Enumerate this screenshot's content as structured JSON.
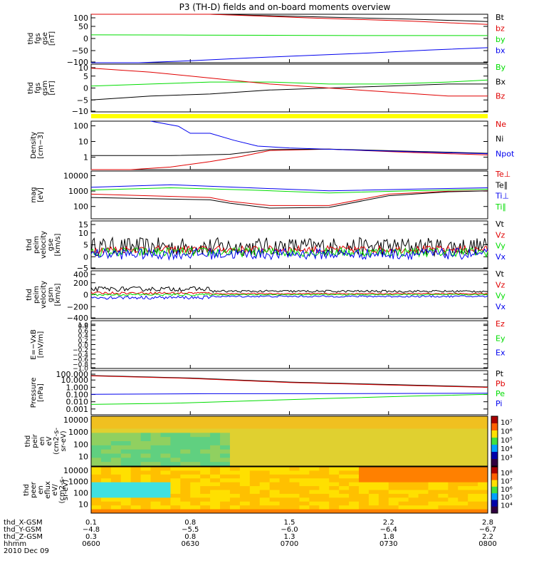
{
  "title": "P3 (TH-D) fields and on-board moments overview",
  "colors": {
    "black": "#000000",
    "red": "#e00000",
    "green": "#00dd00",
    "blue": "#0000ee",
    "yellow": "#ffff00"
  },
  "chart_data": [
    {
      "type": "line",
      "panel": "fgs_gse",
      "ylabel_lines": [
        "thd",
        "fgs",
        "gse",
        "[nT]"
      ],
      "ylim": [
        -100,
        100
      ],
      "yticks": [
        "100",
        "50",
        "0",
        "−50",
        "−100"
      ],
      "series": [
        {
          "name": "Bt",
          "color": "black",
          "x": [
            0,
            0.12,
            0.3,
            0.55,
            0.8,
            1
          ],
          "y": [
            100,
            100,
            100,
            90,
            80,
            70
          ]
        },
        {
          "name": "bz",
          "color": "red",
          "x": [
            0,
            0.12,
            0.3,
            0.55,
            0.8,
            1
          ],
          "y": [
            100,
            100,
            100,
            85,
            72,
            58
          ]
        },
        {
          "name": "by",
          "color": "green",
          "x": [
            0,
            0.25,
            0.5,
            0.75,
            1
          ],
          "y": [
            15,
            14,
            13,
            12,
            12
          ]
        },
        {
          "name": "bx",
          "color": "blue",
          "x": [
            0,
            0.12,
            0.25,
            0.4,
            0.55,
            0.7,
            0.85,
            1
          ],
          "y": [
            -100,
            -100,
            -92,
            -80,
            -70,
            -60,
            -48,
            -38
          ]
        }
      ]
    },
    {
      "type": "line",
      "panel": "fgs_gsm",
      "ylabel_lines": [
        "thd",
        "fgs",
        "gsm",
        "[nT]"
      ],
      "ylim": [
        -12,
        12
      ],
      "yticks": [
        "10",
        "5",
        "0",
        "−5",
        "−10"
      ],
      "series": [
        {
          "name": "By",
          "color": "green",
          "x": [
            0,
            0.15,
            0.3,
            0.45,
            0.6,
            0.75,
            0.9,
            1
          ],
          "y": [
            1,
            2,
            3,
            3,
            2,
            2,
            3,
            4
          ]
        },
        {
          "name": "Bx",
          "color": "black",
          "x": [
            0,
            0.15,
            0.3,
            0.45,
            0.6,
            0.75,
            0.9,
            1
          ],
          "y": [
            -6,
            -4,
            -3,
            -1,
            0,
            1,
            2,
            2
          ]
        },
        {
          "name": "Bz",
          "color": "red",
          "x": [
            0,
            0.15,
            0.3,
            0.45,
            0.6,
            0.75,
            0.9,
            1
          ],
          "y": [
            10,
            8,
            5,
            2,
            0,
            -2,
            -4,
            -4
          ]
        }
      ]
    },
    {
      "type": "flag",
      "panel": "flag",
      "color": "yellow"
    },
    {
      "type": "line",
      "panel": "density",
      "ylabel_lines": [
        "Density",
        "[cm−3]"
      ],
      "log": true,
      "ylim": [
        0.1,
        200
      ],
      "yticks": [
        "100",
        "10",
        "1"
      ],
      "series": [
        {
          "name": "Ne",
          "color": "red",
          "x": [
            0,
            0.1,
            0.2,
            0.3,
            0.38,
            0.45,
            0.6,
            0.8,
            1
          ],
          "y": [
            0.1,
            0.1,
            0.15,
            0.35,
            0.8,
            2,
            2.5,
            1.5,
            1.0
          ]
        },
        {
          "name": "Ni",
          "color": "black",
          "x": [
            0,
            0.2,
            0.35,
            0.45,
            0.6,
            0.8,
            1
          ],
          "y": [
            0.9,
            0.9,
            1.1,
            2.3,
            2.5,
            1.8,
            1.3
          ]
        },
        {
          "name": "Npot",
          "color": "blue",
          "x": [
            0.15,
            0.22,
            0.25,
            0.3,
            0.36,
            0.42,
            0.5,
            0.7,
            1
          ],
          "y": [
            200,
            90,
            30,
            30,
            10,
            4,
            3,
            2,
            1.2
          ]
        }
      ]
    },
    {
      "type": "line",
      "panel": "temperature",
      "ylabel_lines": [
        "mag",
        "[eV]"
      ],
      "log": true,
      "ylim": [
        30,
        10000
      ],
      "yticks": [
        "10000",
        "1000",
        "100"
      ],
      "series": [
        {
          "name": "Te⊥",
          "color": "red",
          "x": [
            0,
            0.3,
            0.35,
            0.45,
            0.6,
            0.75,
            0.9,
            1
          ],
          "y": [
            600,
            400,
            250,
            150,
            150,
            600,
            850,
            900
          ]
        },
        {
          "name": "Te∥",
          "color": "black",
          "x": [
            0,
            0.3,
            0.35,
            0.45,
            0.6,
            0.75,
            0.9,
            1
          ],
          "y": [
            400,
            300,
            200,
            110,
            120,
            500,
            800,
            900
          ]
        },
        {
          "name": "Ti⊥",
          "color": "blue",
          "x": [
            0,
            0.2,
            0.4,
            0.6,
            0.8,
            1
          ],
          "y": [
            1400,
            1900,
            1300,
            900,
            1100,
            1300
          ]
        },
        {
          "name": "Ti∥",
          "color": "green",
          "x": [
            0,
            0.2,
            0.4,
            0.6,
            0.8,
            1
          ],
          "y": [
            1000,
            1300,
            1000,
            700,
            900,
            1100
          ]
        }
      ]
    },
    {
      "type": "line",
      "panel": "peim_gse",
      "ylabel_lines": [
        "thd",
        "peim",
        "velocity",
        "gse",
        "[km/s]"
      ],
      "ylim": [
        -9,
        17
      ],
      "yticks": [
        "15",
        "10",
        "5",
        "0",
        "−5"
      ],
      "noisy": true,
      "series": [
        {
          "name": "Vt",
          "color": "black",
          "base": 3,
          "amp": 5
        },
        {
          "name": "Vz",
          "color": "red",
          "base": 1.5,
          "amp": 2
        },
        {
          "name": "Vy",
          "color": "green",
          "base": 0,
          "amp": 2.5
        },
        {
          "name": "Vx",
          "color": "blue",
          "base": -1,
          "amp": 3
        }
      ]
    },
    {
      "type": "line",
      "panel": "peim_gsm",
      "ylabel_lines": [
        "thd",
        "peim",
        "velocity",
        "gsm",
        "[km/s]"
      ],
      "ylim": [
        -420,
        420
      ],
      "yticks": [
        "400",
        "200",
        "0",
        "−200",
        "−400"
      ],
      "noisy": true,
      "series": [
        {
          "name": "Vt",
          "color": "black",
          "base": 100,
          "amp": 40
        },
        {
          "name": "Vz",
          "color": "red",
          "base": 30,
          "amp": 20
        },
        {
          "name": "Vy",
          "color": "green",
          "base": 0,
          "amp": 20
        },
        {
          "name": "Vx",
          "color": "blue",
          "base": -50,
          "amp": 30
        }
      ]
    },
    {
      "type": "line",
      "panel": "efield",
      "ylabel_lines": [
        "E=−VxB",
        "[mV/m]"
      ],
      "ylim": [
        -1,
        1
      ],
      "yticks": [
        "1.0",
        "0.8",
        "0.6",
        "0.4",
        "0.2",
        "0.0",
        "−0.2",
        "−0.4",
        "−0.6",
        "−0.8",
        "−1.0"
      ],
      "series": [
        {
          "name": "Ez",
          "color": "red"
        },
        {
          "name": "Ey",
          "color": "green"
        },
        {
          "name": "Ex",
          "color": "blue"
        }
      ]
    },
    {
      "type": "line",
      "panel": "pressure",
      "ylabel_lines": [
        "Pressure",
        "[nPa]"
      ],
      "log": true,
      "ylim": [
        0.0008,
        200
      ],
      "yticks": [
        "100.000",
        "10.000",
        "1.000",
        "0.100",
        "0.010",
        "0.001"
      ],
      "series": [
        {
          "name": "Pt",
          "color": "black",
          "x": [
            0,
            0.25,
            0.5,
            0.75,
            1
          ],
          "y": [
            50,
            25,
            8,
            4,
            2
          ]
        },
        {
          "name": "Pb",
          "color": "red",
          "x": [
            0,
            0.25,
            0.5,
            0.75,
            1
          ],
          "y": [
            45,
            22,
            7,
            3.5,
            1.8
          ]
        },
        {
          "name": "Pe",
          "color": "green",
          "x": [
            0,
            0.2,
            0.4,
            0.6,
            0.8,
            1
          ],
          "y": [
            0.015,
            0.02,
            0.04,
            0.08,
            0.15,
            0.25
          ]
        },
        {
          "name": "Pi",
          "color": "blue",
          "x": [
            0,
            0.3,
            0.6,
            1
          ],
          "y": [
            0.25,
            0.3,
            0.3,
            0.35
          ]
        }
      ]
    },
    {
      "type": "heatmap",
      "panel": "peir",
      "ylabel_lines": [
        "thd",
        "peir",
        "en",
        "eV",
        "(cm2-s-",
        "sr-eV)"
      ],
      "yticks": [
        "10000",
        "1000",
        "100",
        "10"
      ],
      "colorbar": [
        "10⁷",
        "10⁶",
        "10⁵",
        "10⁴",
        "10³"
      ]
    },
    {
      "type": "heatmap",
      "panel": "peer",
      "ylabel_lines": [
        "thd",
        "peer",
        "en",
        "eflux",
        "eV/",
        "(cm2-s-",
        "sr-eV)"
      ],
      "yticks": [
        "10000",
        "1000",
        "100",
        "10"
      ],
      "colorbar": [
        "10⁸",
        "10⁷",
        "10⁶",
        "10⁵",
        "10⁴"
      ]
    }
  ],
  "xaxis": {
    "labels": [
      "thd_X-GSM",
      "thd_Y-GSM",
      "thd_Z-GSM",
      "hhmm",
      "2010 Dec 09"
    ],
    "ticks": [
      {
        "x": "0.1",
        "y": "−4.8",
        "z": "0.3",
        "t": "0600"
      },
      {
        "x": "0.8",
        "y": "−5.5",
        "z": "0.8",
        "t": "0630"
      },
      {
        "x": "1.5",
        "y": "−6.0",
        "z": "1.3",
        "t": "0700"
      },
      {
        "x": "2.2",
        "y": "−6.4",
        "z": "1.8",
        "t": "0730"
      },
      {
        "x": "2.8",
        "y": "−6.7",
        "z": "2.2",
        "t": "0800"
      }
    ]
  }
}
